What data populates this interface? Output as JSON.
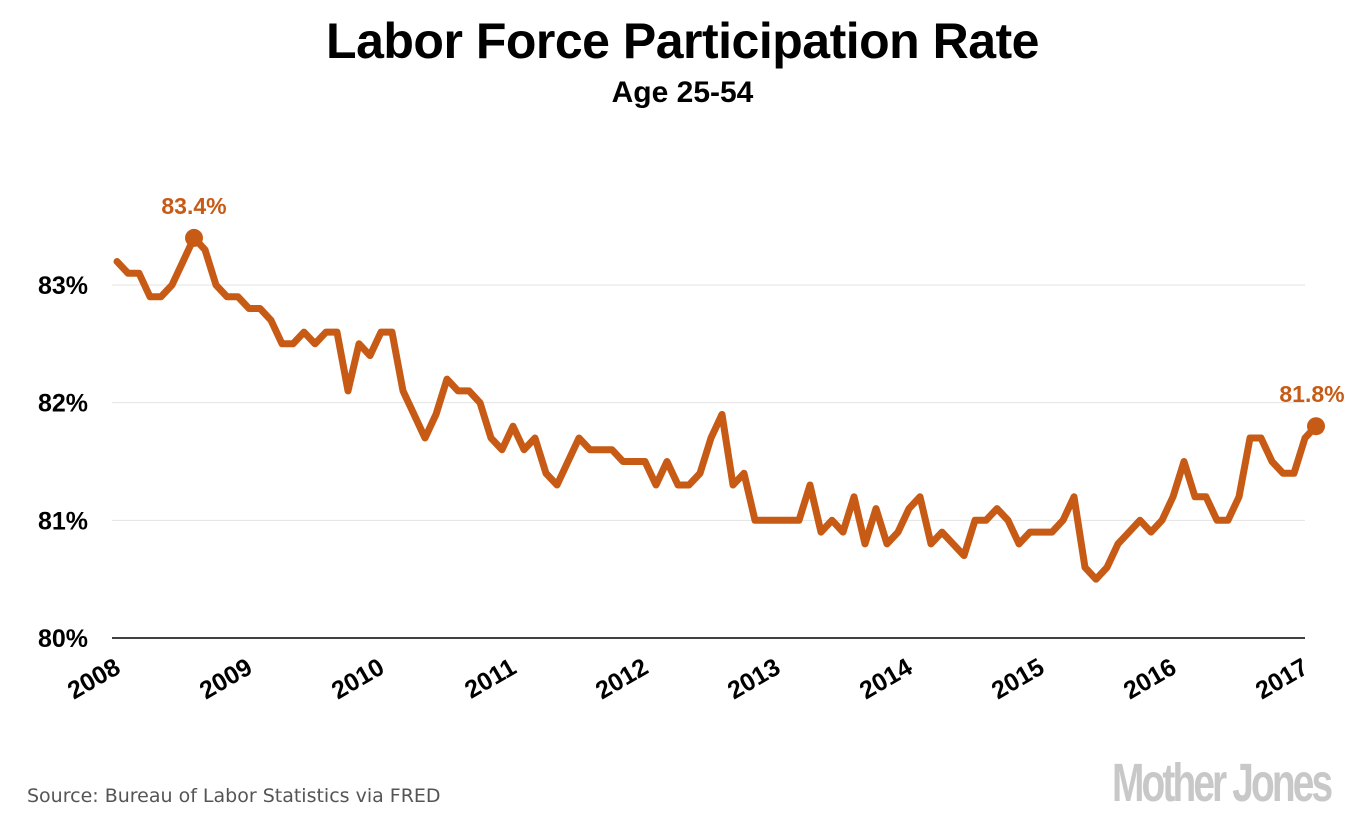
{
  "header": {
    "title": "Labor Force Participation Rate",
    "subtitle": "Age 25-54"
  },
  "footer": {
    "source": "Source: Bureau of Labor Statistics via FRED",
    "logo": "Mother Jones"
  },
  "colors": {
    "line": "#C75B16",
    "grid": "#e3e3e3",
    "axis": "#000000",
    "logo": "#c8c8c8"
  },
  "chart_data": {
    "type": "line",
    "title": "Labor Force Participation Rate",
    "subtitle": "Age 25-54",
    "xlabel": "",
    "ylabel": "",
    "x_start": "2008-01",
    "frequency": "monthly",
    "xlim": [
      2008,
      2017.08
    ],
    "ylim": [
      80,
      83.6
    ],
    "grid": true,
    "y_ticks": [
      80,
      81,
      82,
      83
    ],
    "y_tick_labels": [
      "80%",
      "81%",
      "82%",
      "83%"
    ],
    "x_ticks": [
      2008,
      2009,
      2010,
      2011,
      2012,
      2013,
      2014,
      2015,
      2016,
      2017
    ],
    "x_tick_labels": [
      "2008",
      "2009",
      "2010",
      "2011",
      "2012",
      "2013",
      "2014",
      "2015",
      "2016",
      "2017"
    ],
    "series": [
      {
        "name": "Labor Force Participation Rate, Age 25-54",
        "values": [
          83.2,
          83.1,
          83.1,
          82.9,
          82.9,
          83.0,
          83.2,
          83.4,
          83.3,
          83.0,
          82.9,
          82.9,
          82.8,
          82.8,
          82.7,
          82.5,
          82.5,
          82.6,
          82.5,
          82.6,
          82.6,
          82.1,
          82.5,
          82.4,
          82.6,
          82.6,
          82.1,
          81.9,
          81.7,
          81.9,
          82.2,
          82.1,
          82.1,
          82.0,
          81.7,
          81.6,
          81.8,
          81.6,
          81.7,
          81.4,
          81.3,
          81.5,
          81.7,
          81.6,
          81.6,
          81.6,
          81.5,
          81.5,
          81.5,
          81.3,
          81.5,
          81.3,
          81.3,
          81.4,
          81.7,
          81.9,
          81.3,
          81.4,
          81.0,
          81.0,
          81.0,
          81.0,
          81.0,
          81.3,
          80.9,
          81.0,
          80.9,
          81.2,
          80.8,
          81.1,
          80.8,
          80.9,
          81.1,
          81.2,
          80.8,
          80.9,
          80.8,
          80.7,
          81.0,
          81.0,
          81.1,
          81.0,
          80.8,
          80.9,
          80.9,
          80.9,
          81.0,
          81.2,
          80.6,
          80.5,
          80.6,
          80.8,
          80.9,
          81.0,
          80.9,
          81.0,
          81.2,
          81.5,
          81.2,
          81.2,
          81.0,
          81.0,
          81.2,
          81.7,
          81.7,
          81.5,
          81.4,
          81.4,
          81.7,
          81.8
        ]
      }
    ],
    "annotations": [
      {
        "label": "83.4%",
        "x": "2008-08",
        "y": 83.4
      },
      {
        "label": "81.8%",
        "x": "2017-02",
        "y": 81.8
      }
    ]
  }
}
